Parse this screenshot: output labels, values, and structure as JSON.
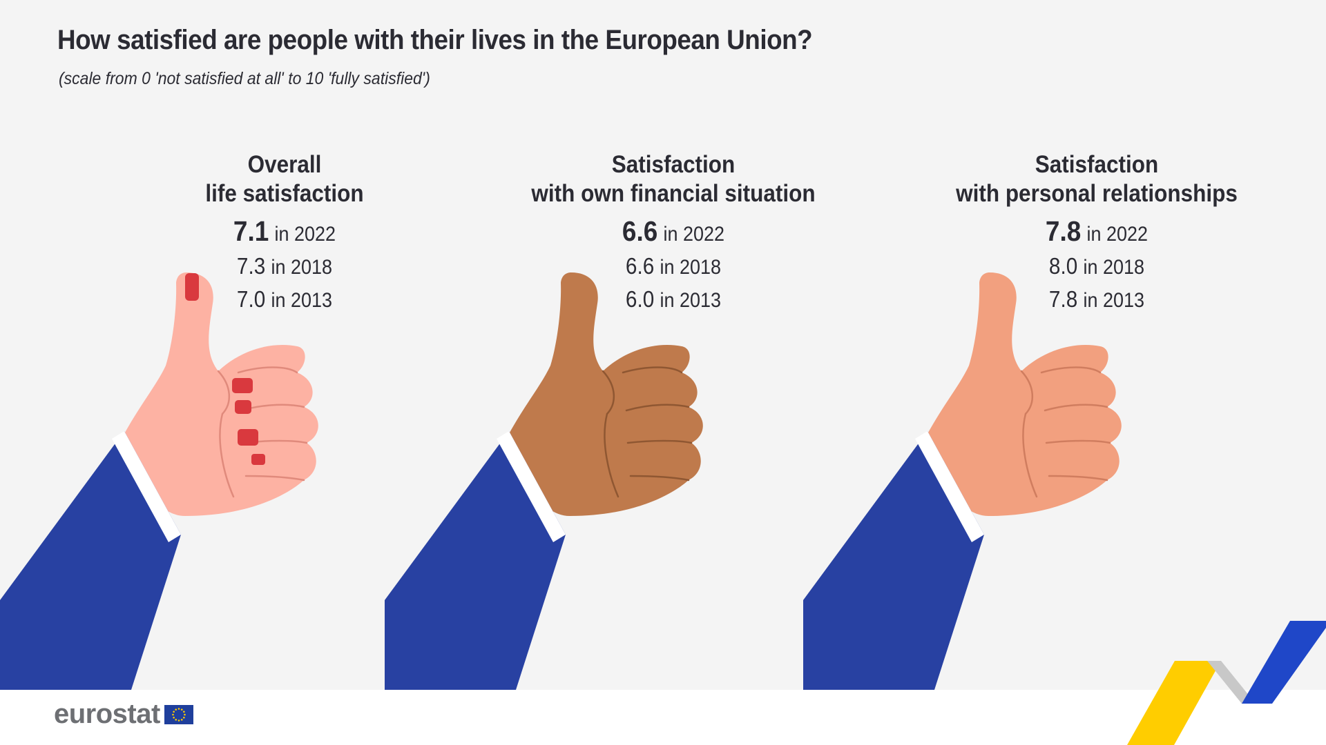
{
  "title": "How satisfied are people with their lives in the European Union?",
  "subtitle": "(scale from 0 'not satisfied at all' to 10 'fully satisfied')",
  "brand": "eurostat",
  "chart_data": {
    "type": "table",
    "title": "How satisfied are people with their lives in the European Union?",
    "subtitle": "(scale from 0 'not satisfied at all' to 10 'fully satisfied')",
    "scale": [
      0,
      10
    ],
    "years": [
      "2022",
      "2018",
      "2013"
    ],
    "series": [
      {
        "name": "Overall life satisfaction",
        "title_lines": [
          "Overall",
          "life satisfaction"
        ],
        "rows": [
          {
            "value": "7.1",
            "label": "in 2022"
          },
          {
            "value": "7.3",
            "label": "in 2018"
          },
          {
            "value": "7.0",
            "label": "in 2013"
          }
        ]
      },
      {
        "name": "Satisfaction with own financial situation",
        "title_lines": [
          "Satisfaction",
          "with own financial situation"
        ],
        "rows": [
          {
            "value": "6.6",
            "label": "in 2022"
          },
          {
            "value": "6.6",
            "label": "in 2018"
          },
          {
            "value": "6.0",
            "label": "in 2013"
          }
        ]
      },
      {
        "name": "Satisfaction with personal relationships",
        "title_lines": [
          "Satisfaction",
          "with personal relationships"
        ],
        "rows": [
          {
            "value": "7.8",
            "label": "in 2022"
          },
          {
            "value": "8.0",
            "label": "in 2018"
          },
          {
            "value": "7.8",
            "label": "in 2013"
          }
        ]
      }
    ]
  },
  "colors": {
    "background": "#f4f4f4",
    "text": "#2b2b33",
    "sleeve": "#2841a2",
    "cuff": "#ffffff",
    "skin": [
      "#fdb2a3",
      "#bf7a4c",
      "#f2a07f"
    ],
    "skin_line": [
      "#e08a7c",
      "#8f5732",
      "#d07d5f"
    ],
    "nail": "#d9393e",
    "brand_gray": "#6d6f73",
    "eu_blue": "#1f3f9c",
    "eu_star": "#ffcc00",
    "accent_yellow": "#ffcd00",
    "accent_blue": "#1f47c8",
    "accent_gray": "#c8c8c8"
  },
  "icons": [
    "thumbs-up-hand-icon",
    "eu-flag-icon",
    "chevron-accent-icon"
  ]
}
